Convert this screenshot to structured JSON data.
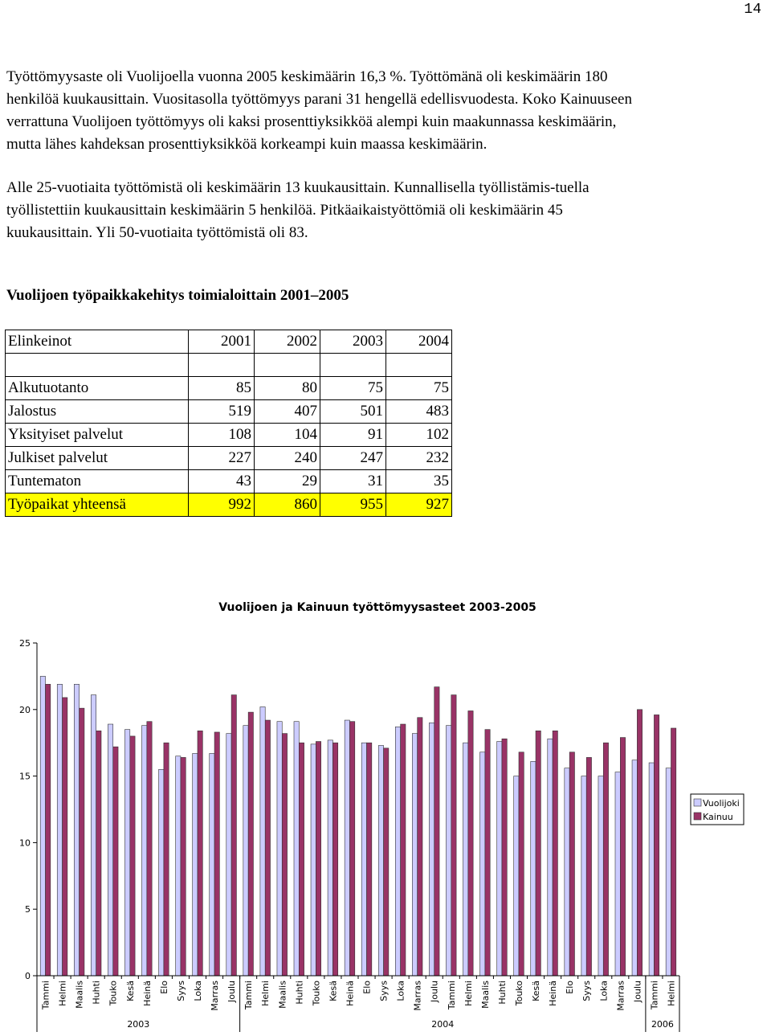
{
  "page_number": "14",
  "paragraphs": [
    [
      "Työttömyysaste oli Vuolijoella vuonna 2005 keskimäärin 16,3 %. Työttömänä oli keskimäärin 180",
      "henkilöä kuukausittain. Vuositasolla työttömyys parani 31 hengellä edellisvuodesta. Koko Kainuuseen",
      "verrattuna Vuolijoen työttömyys oli kaksi prosenttiyksikköä alempi kuin maakunnassa keskimäärin,",
      "mutta lähes kahdeksan prosenttiyksikköä korkeampi kuin maassa keskimäärin."
    ],
    [
      "Alle 25-vuotiaita työttömistä oli keskimäärin 13 kuukausittain. Kunnallisella työllistämis-tuella",
      "työllistettiin kuukausittain keskimäärin 5 henkilöä. Pitkäaikaistyöttömiä oli keskimäärin 45",
      "kuukausittain. Yli 50-vuotiaita työttömistä oli 83."
    ]
  ],
  "table_title": "Vuolijoen työpaikkakehitys toimialoittain 2001–2005",
  "table": {
    "header": [
      "Elinkeinot",
      "2001",
      "2002",
      "2003",
      "2004"
    ],
    "rows": [
      [
        "Alkutuotanto",
        85,
        80,
        75,
        75
      ],
      [
        "Jalostus",
        519,
        407,
        501,
        483
      ],
      [
        "Yksityiset palvelut",
        108,
        104,
        91,
        102
      ],
      [
        "Julkiset palvelut",
        227,
        240,
        247,
        232
      ],
      [
        "Tuntematon",
        43,
        29,
        31,
        35
      ],
      [
        "Työpaikat yhteensä",
        992,
        860,
        955,
        927
      ]
    ]
  },
  "chart_data": {
    "type": "bar",
    "title": "Vuolijoen ja Kainuun työttömyysasteet 2003-2005",
    "categories": [
      "Tammi",
      "Helmi",
      "Maalis",
      "Huhti",
      "Touko",
      "Kesä",
      "Heinä",
      "Elo",
      "Syys",
      "Loka",
      "Marras",
      "Joulu",
      "Tammi",
      "Helmi",
      "Maalis",
      "Huhti",
      "Touko",
      "Kesä",
      "Heinä",
      "Elo",
      "Syys",
      "Loka",
      "Marras",
      "Joulu",
      "Tammi",
      "Helmi",
      "Maalis",
      "Huhti",
      "Touko",
      "Kesä",
      "Heinä",
      "Elo",
      "Syys",
      "Loka",
      "Marras",
      "Joulu",
      "Tammi",
      "Helmi"
    ],
    "year_labels": [
      "2003",
      null,
      null,
      null,
      null,
      null,
      null,
      null,
      null,
      null,
      null,
      null,
      "2004",
      null,
      null,
      null,
      null,
      null,
      null,
      null,
      null,
      null,
      null,
      null,
      null,
      null,
      null,
      null,
      null,
      null,
      null,
      null,
      null,
      null,
      null,
      null,
      "2006",
      null
    ],
    "series": [
      {
        "name": "Vuolijoki",
        "color": "#ccccff",
        "values": [
          22.5,
          21.9,
          21.9,
          21.1,
          18.9,
          18.5,
          18.8,
          15.5,
          16.5,
          16.7,
          16.7,
          18.2,
          18.8,
          20.2,
          19.1,
          19.1,
          17.4,
          17.7,
          19.2,
          17.5,
          17.3,
          18.7,
          18.2,
          19.0,
          18.8,
          17.5,
          16.8,
          17.6,
          15.0,
          16.1,
          17.8,
          15.6,
          15.0,
          15.0,
          15.3,
          16.2,
          16.0,
          15.6
        ]
      },
      {
        "name": "Kainuu",
        "color": "#993366",
        "values": [
          21.9,
          20.9,
          20.1,
          18.4,
          17.2,
          18.0,
          19.1,
          17.5,
          16.4,
          18.4,
          18.3,
          21.1,
          19.8,
          19.2,
          18.2,
          17.5,
          17.6,
          17.5,
          19.1,
          17.5,
          17.1,
          18.9,
          19.4,
          21.7,
          21.1,
          19.9,
          18.5,
          17.8,
          16.8,
          18.4,
          18.4,
          16.8,
          16.4,
          17.5,
          17.9,
          20.0,
          19.6,
          18.6
        ]
      }
    ],
    "ylim": [
      0,
      25
    ],
    "yticks": [
      0,
      5,
      10,
      15,
      20,
      25
    ],
    "legend": "right"
  }
}
